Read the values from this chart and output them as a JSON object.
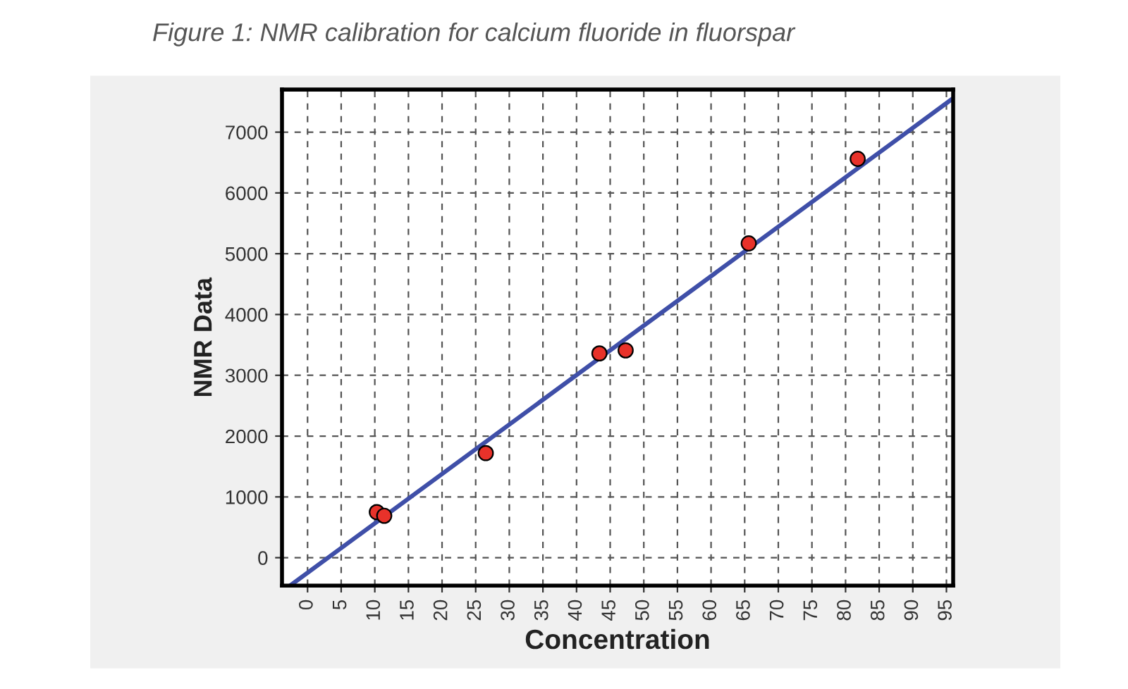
{
  "chart_data": {
    "type": "scatter",
    "title": "Figure 1: NMR calibration for calcium fluoride in fluorspar",
    "xlabel": "Concentration",
    "ylabel": "NMR Data",
    "series": [
      {
        "marker": "circle",
        "color": "#e8322a",
        "x": [
          10.3,
          11.4,
          26.5,
          43.4,
          47.3,
          65.6,
          81.8
        ],
        "values": [
          750,
          690,
          1720,
          3360,
          3410,
          5170,
          6560
        ]
      },
      {
        "type": "line",
        "color": "#3f4fa8",
        "x": [
          -2.6,
          95.9
        ],
        "values": [
          -460,
          7550
        ]
      }
    ],
    "xlim": [
      -3.8,
      96
    ],
    "ylim": [
      -460,
      7700
    ],
    "xticks": [
      0,
      5,
      10,
      15,
      20,
      25,
      30,
      35,
      40,
      45,
      50,
      55,
      60,
      65,
      70,
      75,
      80,
      85,
      90,
      95
    ],
    "yticks": [
      0,
      1000,
      2000,
      3000,
      4000,
      5000,
      6000,
      7000
    ],
    "grid": true,
    "legend": false
  }
}
